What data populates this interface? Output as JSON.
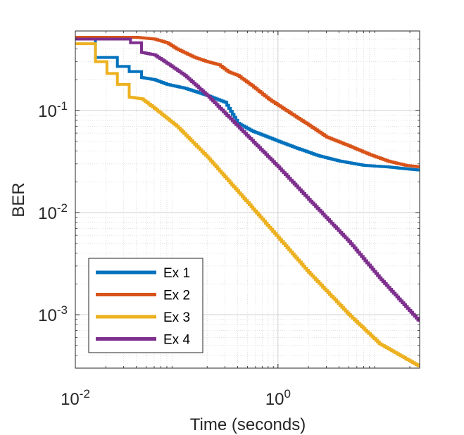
{
  "chart_data": {
    "type": "line",
    "xscale": "log",
    "yscale": "log",
    "xlabel": "Time (seconds)",
    "ylabel": "BER",
    "xlim": [
      0.01,
      25
    ],
    "ylim": [
      0.0003,
      0.6
    ],
    "grid": true,
    "minor_grid": true,
    "legend_position": "bottom-left",
    "x_ticks": [
      {
        "value": 0.01,
        "base": "10",
        "exp": "-2"
      },
      {
        "value": 1,
        "base": "10",
        "exp": "0"
      }
    ],
    "y_ticks": [
      {
        "value": 0.001,
        "base": "10",
        "exp": "-3"
      },
      {
        "value": 0.01,
        "base": "10",
        "exp": "-2"
      },
      {
        "value": 0.1,
        "base": "10",
        "exp": "-1"
      }
    ],
    "series": [
      {
        "name": "Ex 1",
        "color": "#0072BD",
        "step": true,
        "points": [
          [
            0.01,
            0.5
          ],
          [
            0.0158,
            0.5
          ],
          [
            0.0158,
            0.33
          ],
          [
            0.026,
            0.33
          ],
          [
            0.026,
            0.27
          ],
          [
            0.034,
            0.27
          ],
          [
            0.034,
            0.24
          ],
          [
            0.045,
            0.24
          ],
          [
            0.045,
            0.21
          ],
          [
            0.06,
            0.2
          ],
          [
            0.08,
            0.18
          ],
          [
            0.12,
            0.165
          ],
          [
            0.2,
            0.14
          ],
          [
            0.3,
            0.12
          ],
          [
            0.4,
            0.075
          ],
          [
            0.55,
            0.063
          ],
          [
            0.75,
            0.056
          ],
          [
            1.0,
            0.05
          ],
          [
            1.5,
            0.043
          ],
          [
            2.5,
            0.036
          ],
          [
            4,
            0.032
          ],
          [
            7,
            0.029
          ],
          [
            12,
            0.028
          ],
          [
            25,
            0.026
          ]
        ]
      },
      {
        "name": "Ex 2",
        "color": "#D95319",
        "step": true,
        "points": [
          [
            0.01,
            0.52
          ],
          [
            0.04,
            0.52
          ],
          [
            0.06,
            0.5
          ],
          [
            0.08,
            0.46
          ],
          [
            0.1,
            0.4
          ],
          [
            0.15,
            0.33
          ],
          [
            0.2,
            0.3
          ],
          [
            0.26,
            0.28
          ],
          [
            0.32,
            0.24
          ],
          [
            0.4,
            0.22
          ],
          [
            0.55,
            0.175
          ],
          [
            0.8,
            0.13
          ],
          [
            1.2,
            0.1
          ],
          [
            2,
            0.072
          ],
          [
            3,
            0.055
          ],
          [
            5,
            0.045
          ],
          [
            8,
            0.037
          ],
          [
            12,
            0.032
          ],
          [
            18,
            0.029
          ],
          [
            25,
            0.028
          ]
        ]
      },
      {
        "name": "Ex 3",
        "color": "#EDB120",
        "step": true,
        "points": [
          [
            0.01,
            0.45
          ],
          [
            0.0158,
            0.45
          ],
          [
            0.0158,
            0.3
          ],
          [
            0.0205,
            0.3
          ],
          [
            0.0205,
            0.23
          ],
          [
            0.026,
            0.23
          ],
          [
            0.026,
            0.18
          ],
          [
            0.034,
            0.18
          ],
          [
            0.034,
            0.135
          ],
          [
            0.045,
            0.13
          ],
          [
            0.06,
            0.105
          ],
          [
            0.1,
            0.07
          ],
          [
            0.2,
            0.035
          ],
          [
            0.5,
            0.0125
          ],
          [
            1,
            0.0057
          ],
          [
            2,
            0.0026
          ],
          [
            5,
            0.001
          ],
          [
            10,
            0.00052
          ],
          [
            25,
            0.00031
          ]
        ]
      },
      {
        "name": "Ex 4",
        "color": "#7E2F8E",
        "step": true,
        "points": [
          [
            0.01,
            0.5
          ],
          [
            0.035,
            0.5
          ],
          [
            0.035,
            0.46
          ],
          [
            0.045,
            0.46
          ],
          [
            0.045,
            0.37
          ],
          [
            0.06,
            0.35
          ],
          [
            0.08,
            0.29
          ],
          [
            0.12,
            0.22
          ],
          [
            0.2,
            0.14
          ],
          [
            0.4,
            0.07
          ],
          [
            0.7,
            0.04
          ],
          [
            1,
            0.028
          ],
          [
            2,
            0.0135
          ],
          [
            5,
            0.0052
          ],
          [
            10,
            0.0023
          ],
          [
            25,
            0.00085
          ]
        ]
      }
    ],
    "legend": [
      "Ex 1",
      "Ex 2",
      "Ex 3",
      "Ex 4"
    ]
  }
}
